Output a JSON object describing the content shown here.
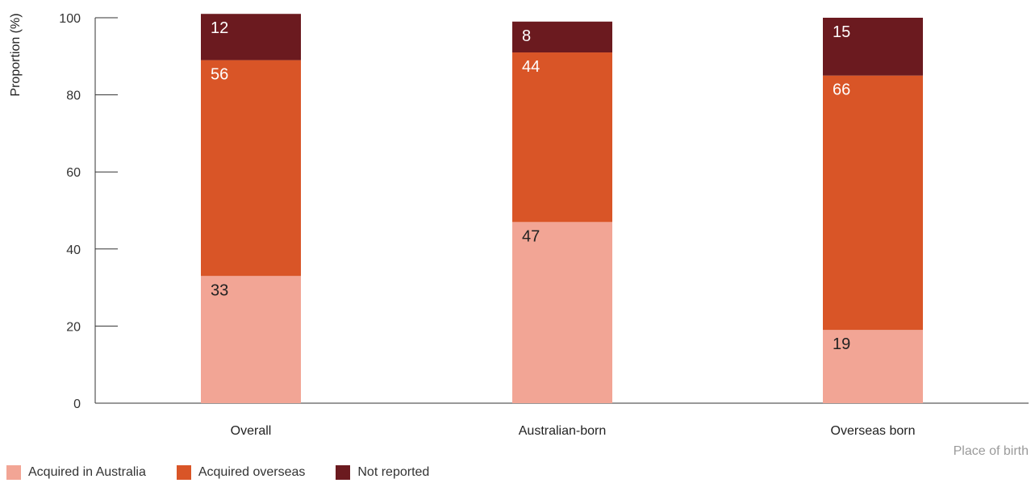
{
  "chart_data": {
    "type": "bar",
    "stacked": true,
    "categories": [
      "Overall",
      "Australian-born",
      "Overseas born"
    ],
    "series": [
      {
        "name": "Acquired in Australia",
        "values": [
          33,
          47,
          19
        ],
        "color": "#f2a595",
        "label_color": "#222222"
      },
      {
        "name": "Acquired overseas",
        "values": [
          56,
          44,
          66
        ],
        "color": "#d95527",
        "label_color": "#ffffff"
      },
      {
        "name": "Not reported",
        "values": [
          12,
          8,
          15
        ],
        "color": "#6b1a1f",
        "label_color": "#ffffff"
      }
    ],
    "ylabel": "Proportion (%)",
    "xlabel": "Place of birth",
    "ylim": [
      0,
      100
    ],
    "yticks": [
      0,
      20,
      40,
      60,
      80,
      100
    ],
    "grid": false,
    "legend_position": "bottom-left"
  }
}
